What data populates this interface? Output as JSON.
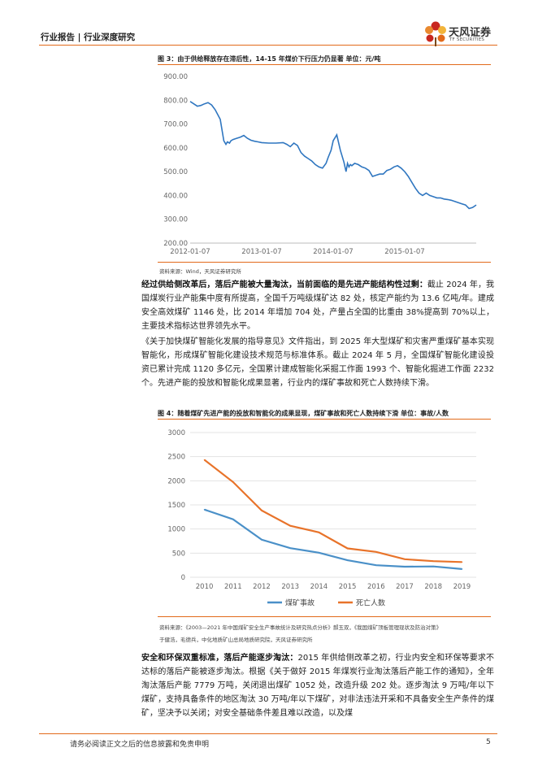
{
  "header": {
    "title": "行业报告 | 行业深度研究"
  },
  "logo": {
    "name_cn": "天风证券",
    "name_en": "TF SECURITIES"
  },
  "figure3": {
    "title": "图 3：由于供给释放存在滞后性，14-15 年煤价下行压力仍显著 单位：元/吨",
    "source": "资料来源：Wind，天风证券研究所"
  },
  "para1": {
    "bold": "经过供给侧改革后，落后产能被大量淘汰，当前面临的是先进产能结构性过剩：",
    "text": "截止 2024 年，我国煤炭行业产能集中度有所提高，全国千万吨级煤矿达 82 处，核定产能约为 13.6 亿吨/年。建成安全高效煤矿 1146 处，比 2014 年增加 704 处，产量占全国的比重由 38%提高到 70%以上，主要技术指标达世界领先水平。"
  },
  "para2": {
    "text": "《关于加快煤矿智能化发展的指导意见》文件指出，到 2025 年大型煤矿和灾害严重煤矿基本实现智能化，形成煤矿智能化建设技术规范与标准体系。截止 2024 年 5 月，全国煤矿智能化建设投资已累计完成 1120 多亿元，全国累计建成智能化采掘工作面 1993 个、智能化掘进工作面 2232 个。先进产能的投放和智能化成果显著，行业内的煤矿事故和死亡人数持续下滑。"
  },
  "figure4": {
    "title": "图 4：随着煤矿先进产能的投放和智能化的成果显现，煤矿事故和死亡人数持续下滑 单位：事故/人数",
    "source_line1": "资料来源：《2003—2021 年中国煤矿安全生产事故统计及研究热点分析》郝玉双，《我国煤矿顶板管理现状及防治对策》",
    "source_line2": "于健浩，毛德兵，中化地质矿山总局地质研究院，天风证券研究所"
  },
  "para3": {
    "bold": "安全和环保双重标准，落后产能逐步淘汰：",
    "text": "2015 年供给侧改革之初，行业内安全和环保等要求不达标的落后产能被逐步淘汰。根据《关于做好 2015 年煤炭行业淘汰落后产能工作的通知》，全年淘汰落后产能 7779 万吨，关闭退出煤矿 1052 处，改造升级 202 处。逐步淘汰 9 万吨/年以下煤矿，支持具备条件的地区淘汰 30 万吨/年以下煤矿，对非法违法开采和不具备安全生产条件的煤矿，坚决予以关闭；对安全基础条件差且难以改造，以及煤"
  },
  "footer": {
    "disclaimer": "请务必阅读正文之后的信息披露和免责申明",
    "page": "5"
  },
  "colors": {
    "accent": "#e26a1a",
    "line_blue": "#4a90c8",
    "line_orange": "#e8732a",
    "price_blue": "#2f76c0"
  },
  "chart_data": [
    {
      "type": "line",
      "title": "图 3：由于供给释放存在滞后性，14-15 年煤价下行压力仍显著 单位：元/吨",
      "xlabel": "",
      "ylabel": "元/吨",
      "ylim": [
        200,
        900
      ],
      "yticks": [
        "900.00",
        "800.00",
        "700.00",
        "600.00",
        "500.00",
        "400.00",
        "300.00",
        "200.00"
      ],
      "xticks": [
        "2012-01-07",
        "2013-01-07",
        "2014-01-07",
        "2015-01-07"
      ],
      "xrange": [
        2012.0,
        2016.0
      ],
      "series": [
        {
          "name": "煤价",
          "x": [
            2012.0,
            2012.05,
            2012.1,
            2012.15,
            2012.2,
            2012.25,
            2012.3,
            2012.35,
            2012.42,
            2012.47,
            2012.5,
            2012.52,
            2012.55,
            2012.57,
            2012.6,
            2012.65,
            2012.7,
            2012.75,
            2012.8,
            2012.85,
            2012.9,
            2012.95,
            2013.0,
            2013.1,
            2013.2,
            2013.3,
            2013.35,
            2013.4,
            2013.45,
            2013.5,
            2013.55,
            2013.6,
            2013.65,
            2013.7,
            2013.75,
            2013.8,
            2013.85,
            2013.9,
            2013.93,
            2013.97,
            2014.0,
            2014.05,
            2014.1,
            2014.15,
            2014.18,
            2014.2,
            2014.22,
            2014.24,
            2014.26,
            2014.3,
            2014.35,
            2014.4,
            2014.45,
            2014.5,
            2014.55,
            2014.6,
            2014.65,
            2014.7,
            2014.75,
            2014.8,
            2014.85,
            2014.9,
            2014.95,
            2015.0,
            2015.05,
            2015.1,
            2015.15,
            2015.2,
            2015.25,
            2015.3,
            2015.35,
            2015.4,
            2015.45,
            2015.5,
            2015.55,
            2015.6,
            2015.65,
            2015.7,
            2015.75,
            2015.8,
            2015.85,
            2015.9,
            2015.95,
            2016.0
          ],
          "y": [
            795,
            785,
            775,
            778,
            785,
            790,
            780,
            760,
            720,
            630,
            615,
            625,
            620,
            630,
            635,
            640,
            645,
            652,
            640,
            632,
            628,
            625,
            622,
            620,
            620,
            622,
            615,
            605,
            620,
            610,
            580,
            565,
            555,
            545,
            530,
            520,
            515,
            535,
            560,
            590,
            630,
            655,
            590,
            540,
            500,
            535,
            520,
            530,
            525,
            535,
            530,
            520,
            515,
            505,
            480,
            485,
            490,
            490,
            505,
            510,
            520,
            525,
            515,
            500,
            480,
            455,
            430,
            410,
            400,
            410,
            400,
            395,
            390,
            390,
            385,
            383,
            380,
            375,
            370,
            365,
            360,
            345,
            350,
            360
          ]
        }
      ]
    },
    {
      "type": "line",
      "title": "图 4：随着煤矿先进产能的投放和智能化的成果显现，煤矿事故和死亡人数持续下滑 单位：事故/人数",
      "categories": [
        "2010",
        "2011",
        "2012",
        "2013",
        "2014",
        "2015",
        "2016",
        "2017",
        "2018",
        "2019"
      ],
      "ylim": [
        0,
        3000
      ],
      "yticks": [
        "3000",
        "2500",
        "2000",
        "1500",
        "1000",
        "500",
        "0"
      ],
      "legend": "bottom",
      "series": [
        {
          "name": "煤矿事故",
          "values": [
            1403,
            1201,
            779,
            604,
            509,
            352,
            249,
            219,
            224,
            170
          ]
        },
        {
          "name": "死亡人数",
          "values": [
            2433,
            1973,
            1384,
            1067,
            931,
            598,
            526,
            375,
            333,
            316
          ]
        }
      ]
    }
  ]
}
